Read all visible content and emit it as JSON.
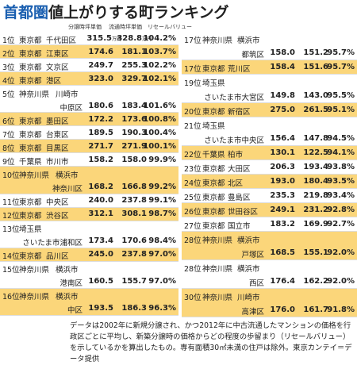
{
  "header": {
    "title_prefix": "首都圏",
    "title": "値上がりする町ランキング"
  },
  "table": {
    "columns": [
      "分譲時坪単価",
      "流通時坪単価",
      "リセールバリュー"
    ],
    "rows": [
      {
        "rank": "1位",
        "pref": "東京都",
        "ward": "千代田区",
        "sale": "315.5",
        "sale_unit": "万円",
        "resale": "328.8",
        "resale_unit": "万円",
        "ratio": "104.2%"
      },
      {
        "rank": "2位",
        "pref": "東京都",
        "ward": "江東区",
        "sale": "174.6",
        "resale": "181.1",
        "ratio": "103.7%"
      },
      {
        "rank": "3位",
        "pref": "東京都",
        "ward": "文京区",
        "sale": "249.7",
        "resale": "255.3",
        "ratio": "102.2%"
      },
      {
        "rank": "4位",
        "pref": "東京都",
        "ward": "港区",
        "sale": "323.0",
        "resale": "329.7",
        "ratio": "102.1%"
      },
      {
        "rank": "5位",
        "pref": "神奈川県",
        "city": "川崎市",
        "ward": "中原区",
        "sale": "180.6",
        "resale": "183.4",
        "ratio": "101.6%"
      },
      {
        "rank": "6位",
        "pref": "東京都",
        "ward": "墨田区",
        "sale": "172.2",
        "resale": "173.6",
        "ratio": "100.8%"
      },
      {
        "rank": "7位",
        "pref": "東京都",
        "ward": "台東区",
        "sale": "189.5",
        "resale": "190.3",
        "ratio": "100.4%"
      },
      {
        "rank": "8位",
        "pref": "東京都",
        "ward": "目黒区",
        "sale": "271.7",
        "resale": "271.9",
        "ratio": "100.1%"
      },
      {
        "rank": "9位",
        "pref": "千葉県",
        "ward": "市川市",
        "sale": "158.2",
        "resale": "158.0",
        "ratio": "99.9%"
      },
      {
        "rank": "10位",
        "pref": "神奈川県",
        "city": "横浜市",
        "ward": "神奈川区",
        "sale": "168.2",
        "resale": "166.8",
        "ratio": "99.2%"
      },
      {
        "rank": "11位",
        "pref": "東京都",
        "ward": "中央区",
        "sale": "240.0",
        "resale": "237.8",
        "ratio": "99.1%"
      },
      {
        "rank": "12位",
        "pref": "東京都",
        "ward": "渋谷区",
        "sale": "312.1",
        "resale": "308.1",
        "ratio": "98.7%"
      },
      {
        "rank": "13位",
        "pref": "埼玉県",
        "city": "",
        "ward": "さいたま市浦和区",
        "sale": "173.4",
        "resale": "170.6",
        "ratio": "98.4%"
      },
      {
        "rank": "14位",
        "pref": "東京都",
        "ward": "品川区",
        "sale": "245.0",
        "resale": "237.8",
        "ratio": "97.0%"
      },
      {
        "rank": "15位",
        "pref": "神奈川県",
        "city": "横浜市",
        "ward": "港南区",
        "sale": "160.5",
        "resale": "155.7",
        "ratio": "97.0%"
      },
      {
        "rank": "16位",
        "pref": "神奈川県",
        "city": "横浜市",
        "ward": "中区",
        "sale": "193.5",
        "resale": "186.3",
        "ratio": "96.3%"
      },
      {
        "rank": "17位",
        "pref": "神奈川県",
        "city": "横浜市",
        "ward": "都筑区",
        "sale": "158.0",
        "resale": "151.2",
        "ratio": "95.7%"
      },
      {
        "rank": "17位",
        "pref": "東京都",
        "ward": "荒川区",
        "sale": "158.4",
        "resale": "151.6",
        "ratio": "95.7%"
      },
      {
        "rank": "19位",
        "pref": "埼玉県",
        "city": "",
        "ward": "さいたま市大宮区",
        "sale": "149.8",
        "resale": "143.0",
        "ratio": "95.5%"
      },
      {
        "rank": "20位",
        "pref": "東京都",
        "ward": "新宿区",
        "sale": "275.0",
        "resale": "261.5",
        "ratio": "95.1%"
      },
      {
        "rank": "21位",
        "pref": "埼玉県",
        "city": "",
        "ward": "さいたま市中央区",
        "sale": "156.4",
        "resale": "147.8",
        "ratio": "94.5%"
      },
      {
        "rank": "22位",
        "pref": "千葉県",
        "ward": "柏市",
        "sale": "130.1",
        "resale": "122.5",
        "ratio": "94.1%"
      },
      {
        "rank": "23位",
        "pref": "東京都",
        "ward": "大田区",
        "sale": "206.3",
        "resale": "193.4",
        "ratio": "93.8%"
      },
      {
        "rank": "24位",
        "pref": "東京都",
        "ward": "北区",
        "sale": "193.0",
        "resale": "180.4",
        "ratio": "93.5%"
      },
      {
        "rank": "25位",
        "pref": "東京都",
        "ward": "豊島区",
        "sale": "235.3",
        "resale": "219.8",
        "ratio": "93.4%"
      },
      {
        "rank": "26位",
        "pref": "東京都",
        "ward": "世田谷区",
        "sale": "249.1",
        "resale": "231.2",
        "ratio": "92.8%"
      },
      {
        "rank": "27位",
        "pref": "東京都",
        "ward": "国立市",
        "sale": "183.2",
        "resale": "169.9",
        "ratio": "92.7%"
      },
      {
        "rank": "28位",
        "pref": "神奈川県",
        "city": "横浜市",
        "ward": "戸塚区",
        "sale": "168.5",
        "resale": "155.1",
        "ratio": "92.0%"
      },
      {
        "rank": "28位",
        "pref": "神奈川県",
        "city": "横浜市",
        "ward": "西区",
        "sale": "176.4",
        "resale": "162.2",
        "ratio": "92.0%"
      },
      {
        "rank": "30位",
        "pref": "神奈川県",
        "city": "川崎市",
        "ward": "高津区",
        "sale": "176.0",
        "resale": "161.7",
        "ratio": "91.8%"
      }
    ]
  },
  "footnote": "データは2002年に新規分譲され、かつ2012年に中古流通したマンションの価格を行政区ごとに平均し、新築分譲時の価格からどの程度の歩留まり（リセールバリュー）を示しているかを算出したもの。専有面積30㎡未満の住戸は除外。東京カンテイ＝データ提供"
}
